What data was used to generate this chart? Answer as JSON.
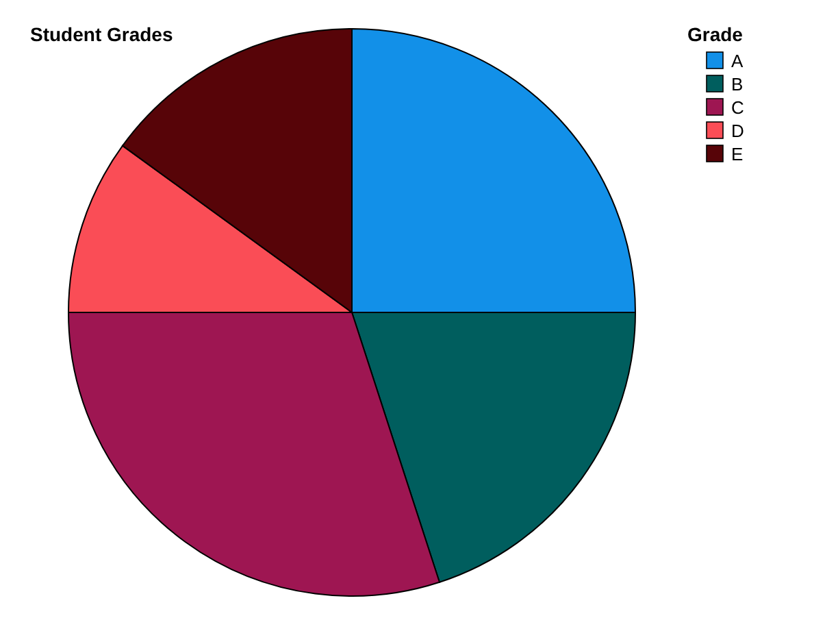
{
  "chart_data": {
    "type": "pie",
    "title": "Student Grades",
    "legend_title": "Grade",
    "legend": "top right",
    "categories": [
      "A",
      "B",
      "C",
      "D",
      "E"
    ],
    "values": [
      25,
      20,
      30,
      10,
      15
    ],
    "colors": [
      "#1290e8",
      "#005e5e",
      "#9e1652",
      "#fa4d56",
      "#570408"
    ]
  }
}
